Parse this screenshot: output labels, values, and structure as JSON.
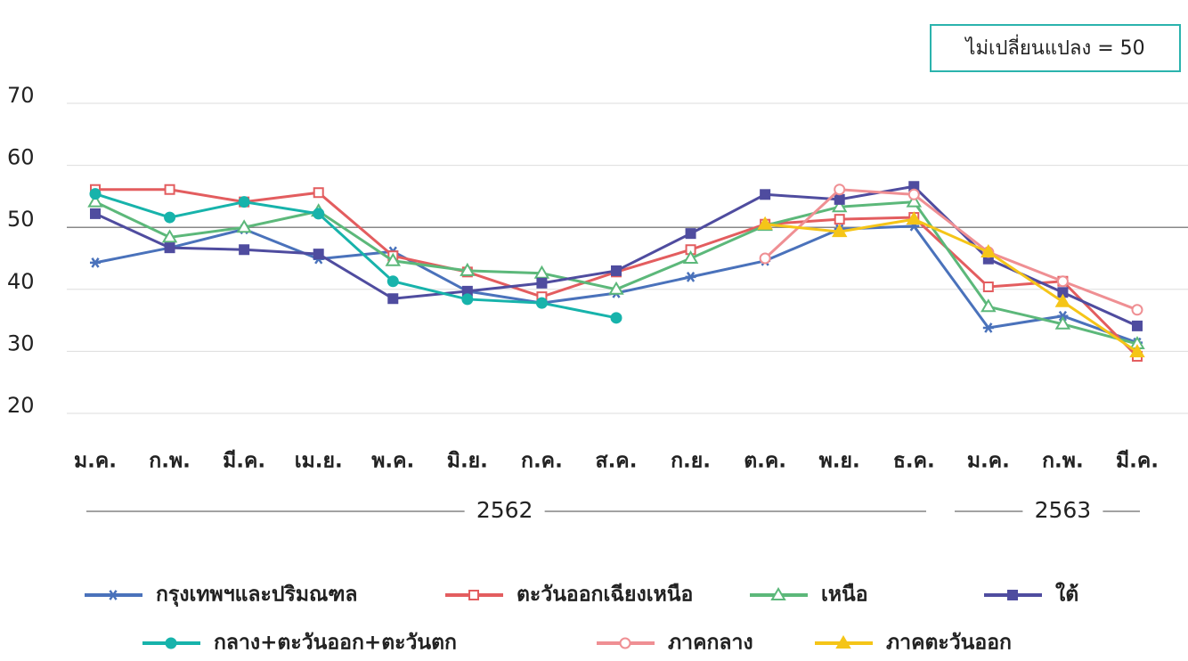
{
  "chart_data": {
    "type": "line",
    "categories": [
      "ม.ค.",
      "ก.พ.",
      "มี.ค.",
      "เม.ย.",
      "พ.ค.",
      "มิ.ย.",
      "ก.ค.",
      "ส.ค.",
      "ก.ย.",
      "ต.ค.",
      "พ.ย.",
      "ธ.ค.",
      "ม.ค.",
      "ก.พ.",
      "มี.ค."
    ],
    "x_groups": [
      "2562",
      "2563"
    ],
    "ylim": [
      20,
      70
    ],
    "yticks": [
      20,
      30,
      40,
      50,
      60,
      70
    ],
    "grid": true,
    "reference_line": {
      "value": 50,
      "label": "ไม่เปลี่ยนแปลง = 50"
    },
    "series": [
      {
        "name": "กรุงเทพฯและปริมณฑล",
        "color": "#4a72bb",
        "marker": "asterisk",
        "values": [
          44.3,
          46.7,
          49.7,
          44.9,
          46.1,
          39.7,
          37.8,
          39.4,
          42.0,
          44.6,
          49.7,
          50.2,
          33.8,
          35.7,
          31.4
        ]
      },
      {
        "name": "ตะวันออกเฉียงเหนือ",
        "color": "#e35d5f",
        "marker": "square-open",
        "values": [
          56.1,
          56.1,
          54.1,
          55.6,
          45.4,
          42.8,
          38.8,
          42.8,
          46.4,
          50.5,
          51.3,
          51.6,
          40.4,
          41.3,
          29.2
        ]
      },
      {
        "name": "เหนือ",
        "color": "#5cb87a",
        "marker": "triangle-open",
        "values": [
          54.1,
          48.4,
          50.0,
          52.6,
          44.6,
          43.0,
          42.6,
          40.0,
          45.0,
          50.3,
          53.3,
          54.1,
          37.2,
          34.4,
          31.2
        ]
      },
      {
        "name": "ใต้",
        "color": "#4f4c9f",
        "marker": "square",
        "values": [
          52.2,
          46.7,
          46.4,
          45.7,
          38.5,
          39.7,
          41.0,
          43.0,
          49.0,
          55.3,
          54.5,
          56.6,
          44.9,
          39.5,
          34.1
        ]
      },
      {
        "name": "กลาง+ตะวันออก+ตะวันตก",
        "color": "#17b3ab",
        "marker": "circle",
        "values": [
          55.4,
          51.6,
          54.1,
          52.2,
          41.3,
          38.4,
          37.8,
          35.4,
          null,
          null,
          null,
          null,
          null,
          null,
          null
        ]
      },
      {
        "name": "ภาคกลาง",
        "color": "#ef8f93",
        "marker": "circle-open",
        "values": [
          null,
          null,
          null,
          null,
          null,
          null,
          null,
          null,
          null,
          45.0,
          56.1,
          55.3,
          46.0,
          41.3,
          36.7
        ]
      },
      {
        "name": "ภาคตะวันออก",
        "color": "#f5c518",
        "marker": "triangle",
        "values": [
          null,
          null,
          null,
          null,
          null,
          null,
          null,
          null,
          null,
          50.5,
          49.3,
          51.3,
          46.0,
          38.0,
          29.9
        ]
      }
    ]
  }
}
